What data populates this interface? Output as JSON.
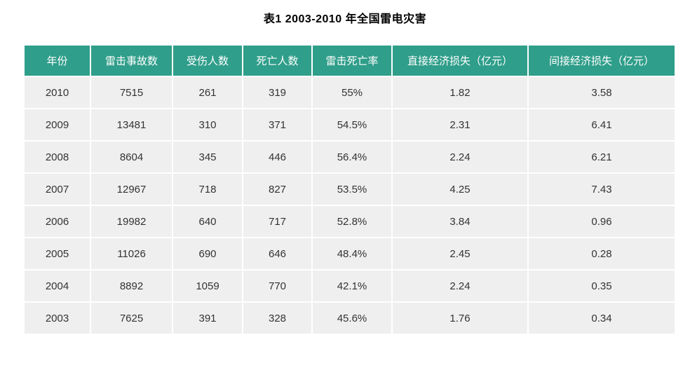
{
  "colors": {
    "header_bg": "#2f9e8a",
    "header_text": "#ffffff",
    "row_bg": "#efefef",
    "cell_text": "#333333",
    "title_text": "#000000"
  },
  "chart_data": {
    "type": "table",
    "title": "表1 2003-2010 年全国雷电灾害",
    "columns": [
      "年份",
      "雷击事故数",
      "受伤人数",
      "死亡人数",
      "雷击死亡率",
      "直接经济损失（亿元）",
      "间接经济损失（亿元）"
    ],
    "rows": [
      [
        "2010",
        "7515",
        "261",
        "319",
        "55%",
        "1.82",
        "3.58"
      ],
      [
        "2009",
        "13481",
        "310",
        "371",
        "54.5%",
        "2.31",
        "6.41"
      ],
      [
        "2008",
        "8604",
        "345",
        "446",
        "56.4%",
        "2.24",
        "6.21"
      ],
      [
        "2007",
        "12967",
        "718",
        "827",
        "53.5%",
        "4.25",
        "7.43"
      ],
      [
        "2006",
        "19982",
        "640",
        "717",
        "52.8%",
        "3.84",
        "0.96"
      ],
      [
        "2005",
        "11026",
        "690",
        "646",
        "48.4%",
        "2.45",
        "0.28"
      ],
      [
        "2004",
        "8892",
        "1059",
        "770",
        "42.1%",
        "2.24",
        "0.35"
      ],
      [
        "2003",
        "7625",
        "391",
        "328",
        "45.6%",
        "1.76",
        "0.34"
      ]
    ]
  }
}
